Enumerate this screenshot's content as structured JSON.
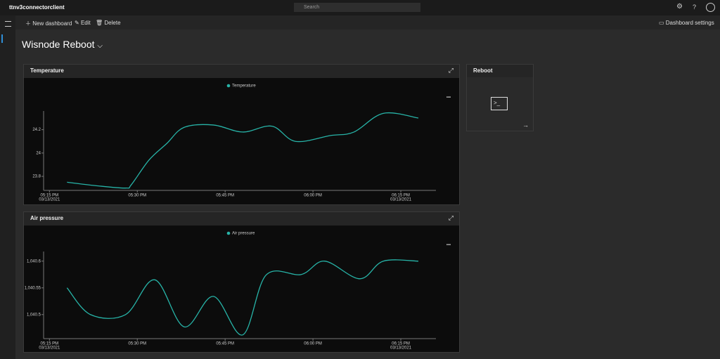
{
  "app": {
    "name": "ttnv3connectorclient",
    "search": "Search"
  },
  "toolbar": {
    "new_dashboard": "New dashboard",
    "edit": "Edit",
    "delete": "Delete",
    "settings": "Dashboard settings"
  },
  "dashboard": {
    "title": "Wisnode Reboot"
  },
  "tiles": {
    "reboot": "Reboot"
  },
  "chart_data": [
    {
      "type": "line",
      "title": "Temperature",
      "x": [
        "2021-03-13 17:18",
        "2021-03-13 17:23",
        "2021-03-13 17:28",
        "2021-03-13 17:29",
        "2021-03-13 17:32",
        "2021-03-13 17:35",
        "2021-03-13 17:38",
        "2021-03-13 17:43",
        "2021-03-13 17:48",
        "2021-03-13 17:53",
        "2021-03-13 17:57",
        "2021-03-13 18:03",
        "2021-03-13 18:07",
        "2021-03-13 18:12",
        "2021-03-13 18:18"
      ],
      "series": [
        {
          "name": "Temperature",
          "color": "#27b3a7",
          "values": [
            23.75,
            23.72,
            23.7,
            23.73,
            23.94,
            24.08,
            24.22,
            24.24,
            24.18,
            24.23,
            24.1,
            24.15,
            24.18,
            24.34,
            24.3
          ]
        }
      ],
      "xlim": [
        "2021-03-13 17:14",
        "2021-03-13 18:21"
      ],
      "xticks": [
        {
          "value": "2021-03-13 17:15",
          "label": [
            "05:15 PM",
            "03/13/2021"
          ]
        },
        {
          "value": "2021-03-13 17:30",
          "label": [
            "05:30 PM"
          ]
        },
        {
          "value": "2021-03-13 17:45",
          "label": [
            "05:45 PM"
          ]
        },
        {
          "value": "2021-03-13 18:00",
          "label": [
            "06:00 PM"
          ]
        },
        {
          "value": "2021-03-13 18:15",
          "label": [
            "06:15 PM",
            "03/13/2021"
          ]
        }
      ],
      "ylim": [
        23.68,
        24.36
      ],
      "yticks": [
        23.8,
        24,
        24.2
      ]
    },
    {
      "type": "line",
      "title": "Air pressure",
      "x": [
        "2021-03-13 17:18",
        "2021-03-13 17:22",
        "2021-03-13 17:28",
        "2021-03-13 17:33",
        "2021-03-13 17:38",
        "2021-03-13 17:43",
        "2021-03-13 17:48",
        "2021-03-13 17:52",
        "2021-03-13 17:58",
        "2021-03-13 18:02",
        "2021-03-13 18:08",
        "2021-03-13 18:12",
        "2021-03-13 18:18"
      ],
      "series": [
        {
          "name": "Air pressure",
          "color": "#27b3a7",
          "values": [
            1040.55,
            1040.5,
            1040.5,
            1040.565,
            1040.477,
            1040.534,
            1040.462,
            1040.574,
            1040.575,
            1040.6,
            1040.567,
            1040.6,
            1040.6
          ]
        }
      ],
      "xlim": [
        "2021-03-13 17:14",
        "2021-03-13 18:21"
      ],
      "xticks": [
        {
          "value": "2021-03-13 17:15",
          "label": [
            "05:15 PM",
            "03/13/2021"
          ]
        },
        {
          "value": "2021-03-13 17:30",
          "label": [
            "05:30 PM"
          ]
        },
        {
          "value": "2021-03-13 17:45",
          "label": [
            "05:45 PM"
          ]
        },
        {
          "value": "2021-03-13 18:00",
          "label": [
            "06:00 PM"
          ]
        },
        {
          "value": "2021-03-13 18:15",
          "label": [
            "06:15 PM",
            "03/13/2021"
          ]
        }
      ],
      "ylim": [
        1040.455,
        1040.618
      ],
      "yticks": [
        {
          "value": 1040.5,
          "label": "1,040.5"
        },
        {
          "value": 1040.55,
          "label": "1,040.55"
        },
        {
          "value": 1040.6,
          "label": "1,040.6"
        }
      ]
    }
  ]
}
